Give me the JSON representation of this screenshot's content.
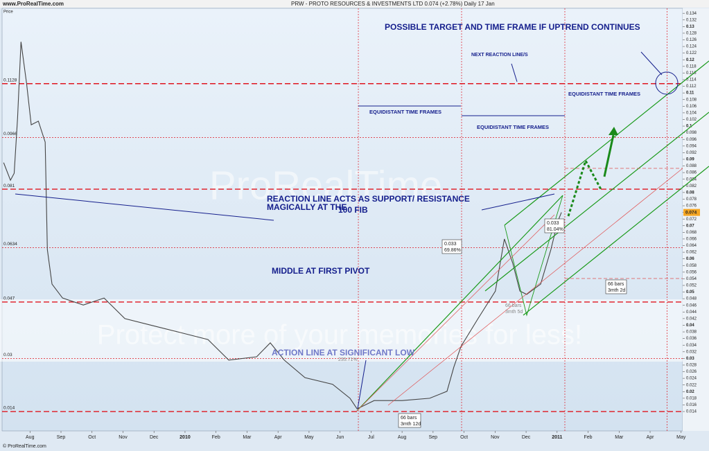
{
  "header": {
    "site": "www.ProRealTime.com",
    "title": "PRW - PROTO RESOURCES & INVESTMENTS LTD   0.074 (+2.78%)   Daily  17 Jan",
    "axis_caption": "Price",
    "footer": "© ProRealTime.com"
  },
  "watermark": [
    "ProRealTime",
    "Protect more of your memories for less!"
  ],
  "chart_data": {
    "type": "line",
    "x": [
      -0.85,
      -0.63,
      -0.51,
      -0.4,
      -0.29,
      -0.11,
      0.04,
      0.27,
      0.49,
      0.56,
      0.71,
      1.05,
      1.72,
      2.39,
      3.06,
      3.95,
      4.85,
      5.74,
      6.41,
      7.31,
      7.75,
      8.2,
      8.87,
      9.76,
      10.32,
      10.55,
      11.1,
      12.0,
      12.89,
      13.45,
      13.67,
      13.9,
      14.45,
      15.01,
      15.3,
      15.57,
      15.8,
      16.02,
      16.47,
      16.8,
      17.02,
      17.14
    ],
    "series": [
      {
        "name": "PRW",
        "color": "#444444",
        "values": [
          0.089,
          0.0837,
          0.0858,
          0.1025,
          0.1254,
          0.1129,
          0.1004,
          0.1015,
          0.0952,
          0.0628,
          0.0524,
          0.0482,
          0.0461,
          0.0482,
          0.042,
          0.0399,
          0.0378,
          0.0357,
          0.0295,
          0.0305,
          0.0347,
          0.0295,
          0.0242,
          0.0222,
          0.018,
          0.0148,
          0.0173,
          0.0173,
          0.018,
          0.0201,
          0.0274,
          0.0336,
          0.042,
          0.0503,
          0.066,
          0.0587,
          0.0503,
          0.0493,
          0.0524,
          0.0628,
          0.0712,
          0.074
        ]
      }
    ],
    "last_price": 0.074,
    "xlim": [
      -0.9,
      21.05
    ],
    "xticks": [
      {
        "value": 0,
        "label": "Aug"
      },
      {
        "value": 1,
        "label": "Sep"
      },
      {
        "value": 2,
        "label": "Oct"
      },
      {
        "value": 3,
        "label": "Nov"
      },
      {
        "value": 4,
        "label": "Dec"
      },
      {
        "value": 5,
        "label": "2010"
      },
      {
        "value": 6,
        "label": "Feb"
      },
      {
        "value": 7,
        "label": "Mar"
      },
      {
        "value": 8,
        "label": "Apr"
      },
      {
        "value": 9,
        "label": "May"
      },
      {
        "value": 10,
        "label": "Jun"
      },
      {
        "value": 11,
        "label": "Jul"
      },
      {
        "value": 12,
        "label": "Aug"
      },
      {
        "value": 13,
        "label": "Sep"
      },
      {
        "value": 14,
        "label": "Oct"
      },
      {
        "value": 15,
        "label": "Nov"
      },
      {
        "value": 16,
        "label": "Dec"
      },
      {
        "value": 17,
        "label": "2011"
      },
      {
        "value": 18,
        "label": "Feb"
      },
      {
        "value": 19,
        "label": "Mar"
      },
      {
        "value": 20,
        "label": "Apr"
      },
      {
        "value": 21,
        "label": "May"
      }
    ],
    "ylim": [
      0.00816,
      0.1355
    ],
    "yticks": [
      0.014,
      0.016,
      0.018,
      0.02,
      0.022,
      0.024,
      0.026,
      0.028,
      0.03,
      0.032,
      0.034,
      0.036,
      0.038,
      0.04,
      0.042,
      0.044,
      0.046,
      0.048,
      0.05,
      0.052,
      0.054,
      0.056,
      0.058,
      0.06,
      0.062,
      0.064,
      0.066,
      0.068,
      0.07,
      0.072,
      0.074,
      0.076,
      0.078,
      0.08,
      0.082,
      0.084,
      0.086,
      0.088,
      0.09,
      0.092,
      0.094,
      0.096,
      0.098,
      0.1,
      0.102,
      0.104,
      0.106,
      0.108,
      0.11,
      0.112,
      0.114,
      0.116,
      0.118,
      0.12,
      0.122,
      0.124,
      0.126,
      0.128,
      0.13,
      0.132,
      0.134
    ],
    "grid": false,
    "fib_levels": [
      0.1128,
      0.0966,
      0.081,
      0.0634,
      0.047,
      0.03,
      0.014
    ],
    "fib_color": "#e0141e",
    "time_lines": [
      10.59,
      13.92,
      17.25,
      20.55
    ]
  },
  "annotations": [
    "POSSIBLE TARGET AND TIME FRAME IF UPTREND CONTINUES",
    "NEXT REACTION LINE/S",
    "EQUIDISTANT TIME FRAMES",
    "EQUIDISTANT TIME FRAMES",
    "EQUIDISTANT TIME FRAMES",
    "REACTION LINE ACTS AS SUPPORT/ RESISTANCE",
    "MAGICALLY AT THE",
    "100 FIB",
    "MIDDLE AT FIRST PIVOT",
    "ACTION LINE AT SIGNIFICANT LOW"
  ],
  "boxes": [
    [
      "0.033",
      "69.86%"
    ],
    [
      "0.033",
      "81.04%"
    ],
    [
      "66 bars",
      "3mth 5d"
    ],
    [
      "66 bars",
      "3mth 2d"
    ],
    [
      "66 bars",
      "3mth 12d"
    ],
    [
      "235.71%"
    ]
  ]
}
